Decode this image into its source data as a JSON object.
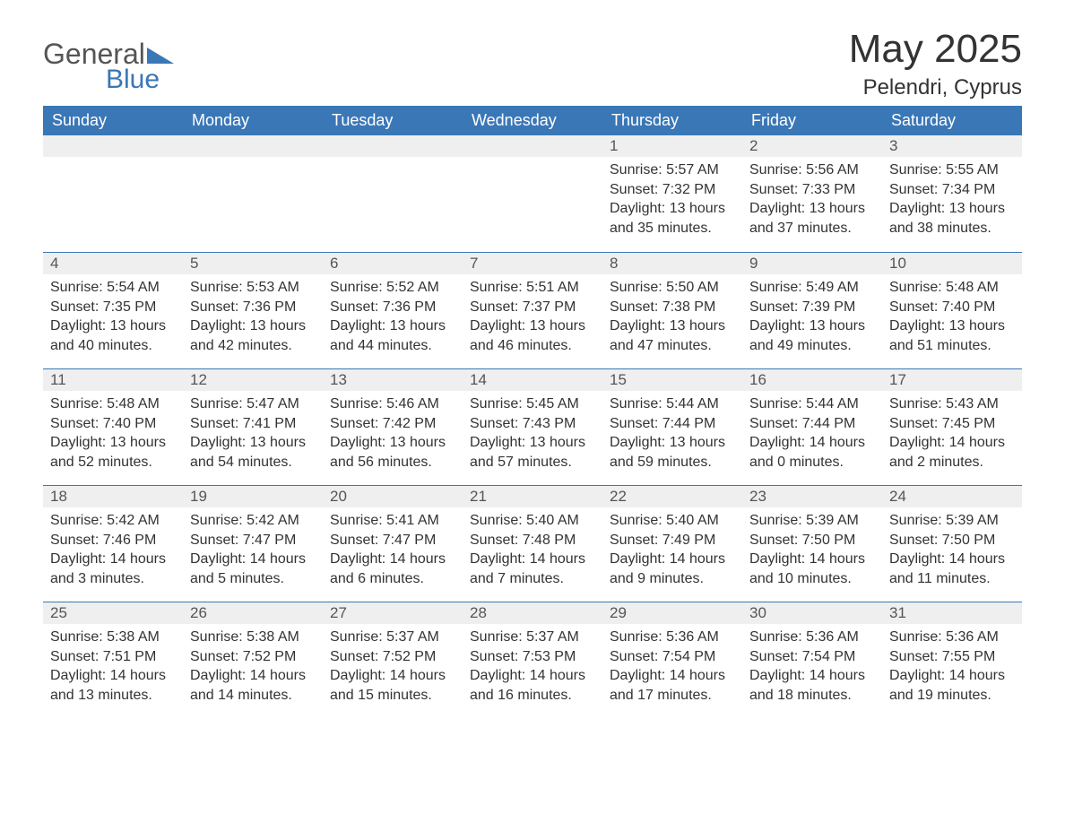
{
  "brand": {
    "text_general": "General",
    "text_blue": "Blue",
    "brand_color": "#3a77b7"
  },
  "title": "May 2025",
  "location": "Pelendri, Cyprus",
  "style": {
    "header_bg": "#3a77b7",
    "header_text_color": "#ffffff",
    "daybar_bg": "#efefef",
    "body_text_color": "#333333",
    "page_bg": "#ffffff",
    "border_color": "#3a77b7",
    "title_fontsize": 44,
    "location_fontsize": 24,
    "header_fontsize": 18,
    "body_fontsize": 16,
    "daynum_fontsize": 17,
    "columns": 7
  },
  "columns": [
    "Sunday",
    "Monday",
    "Tuesday",
    "Wednesday",
    "Thursday",
    "Friday",
    "Saturday"
  ],
  "labels": {
    "sunrise_prefix": "Sunrise: ",
    "sunset_prefix": "Sunset: ",
    "daylight_prefix": "Daylight: "
  },
  "weeks": [
    [
      null,
      null,
      null,
      null,
      {
        "day": "1",
        "sunrise": "5:57 AM",
        "sunset": "7:32 PM",
        "daylight": "13 hours and 35 minutes."
      },
      {
        "day": "2",
        "sunrise": "5:56 AM",
        "sunset": "7:33 PM",
        "daylight": "13 hours and 37 minutes."
      },
      {
        "day": "3",
        "sunrise": "5:55 AM",
        "sunset": "7:34 PM",
        "daylight": "13 hours and 38 minutes."
      }
    ],
    [
      {
        "day": "4",
        "sunrise": "5:54 AM",
        "sunset": "7:35 PM",
        "daylight": "13 hours and 40 minutes."
      },
      {
        "day": "5",
        "sunrise": "5:53 AM",
        "sunset": "7:36 PM",
        "daylight": "13 hours and 42 minutes."
      },
      {
        "day": "6",
        "sunrise": "5:52 AM",
        "sunset": "7:36 PM",
        "daylight": "13 hours and 44 minutes."
      },
      {
        "day": "7",
        "sunrise": "5:51 AM",
        "sunset": "7:37 PM",
        "daylight": "13 hours and 46 minutes."
      },
      {
        "day": "8",
        "sunrise": "5:50 AM",
        "sunset": "7:38 PM",
        "daylight": "13 hours and 47 minutes."
      },
      {
        "day": "9",
        "sunrise": "5:49 AM",
        "sunset": "7:39 PM",
        "daylight": "13 hours and 49 minutes."
      },
      {
        "day": "10",
        "sunrise": "5:48 AM",
        "sunset": "7:40 PM",
        "daylight": "13 hours and 51 minutes."
      }
    ],
    [
      {
        "day": "11",
        "sunrise": "5:48 AM",
        "sunset": "7:40 PM",
        "daylight": "13 hours and 52 minutes."
      },
      {
        "day": "12",
        "sunrise": "5:47 AM",
        "sunset": "7:41 PM",
        "daylight": "13 hours and 54 minutes."
      },
      {
        "day": "13",
        "sunrise": "5:46 AM",
        "sunset": "7:42 PM",
        "daylight": "13 hours and 56 minutes."
      },
      {
        "day": "14",
        "sunrise": "5:45 AM",
        "sunset": "7:43 PM",
        "daylight": "13 hours and 57 minutes."
      },
      {
        "day": "15",
        "sunrise": "5:44 AM",
        "sunset": "7:44 PM",
        "daylight": "13 hours and 59 minutes."
      },
      {
        "day": "16",
        "sunrise": "5:44 AM",
        "sunset": "7:44 PM",
        "daylight": "14 hours and 0 minutes."
      },
      {
        "day": "17",
        "sunrise": "5:43 AM",
        "sunset": "7:45 PM",
        "daylight": "14 hours and 2 minutes."
      }
    ],
    [
      {
        "day": "18",
        "sunrise": "5:42 AM",
        "sunset": "7:46 PM",
        "daylight": "14 hours and 3 minutes."
      },
      {
        "day": "19",
        "sunrise": "5:42 AM",
        "sunset": "7:47 PM",
        "daylight": "14 hours and 5 minutes."
      },
      {
        "day": "20",
        "sunrise": "5:41 AM",
        "sunset": "7:47 PM",
        "daylight": "14 hours and 6 minutes."
      },
      {
        "day": "21",
        "sunrise": "5:40 AM",
        "sunset": "7:48 PM",
        "daylight": "14 hours and 7 minutes."
      },
      {
        "day": "22",
        "sunrise": "5:40 AM",
        "sunset": "7:49 PM",
        "daylight": "14 hours and 9 minutes."
      },
      {
        "day": "23",
        "sunrise": "5:39 AM",
        "sunset": "7:50 PM",
        "daylight": "14 hours and 10 minutes."
      },
      {
        "day": "24",
        "sunrise": "5:39 AM",
        "sunset": "7:50 PM",
        "daylight": "14 hours and 11 minutes."
      }
    ],
    [
      {
        "day": "25",
        "sunrise": "5:38 AM",
        "sunset": "7:51 PM",
        "daylight": "14 hours and 13 minutes."
      },
      {
        "day": "26",
        "sunrise": "5:38 AM",
        "sunset": "7:52 PM",
        "daylight": "14 hours and 14 minutes."
      },
      {
        "day": "27",
        "sunrise": "5:37 AM",
        "sunset": "7:52 PM",
        "daylight": "14 hours and 15 minutes."
      },
      {
        "day": "28",
        "sunrise": "5:37 AM",
        "sunset": "7:53 PM",
        "daylight": "14 hours and 16 minutes."
      },
      {
        "day": "29",
        "sunrise": "5:36 AM",
        "sunset": "7:54 PM",
        "daylight": "14 hours and 17 minutes."
      },
      {
        "day": "30",
        "sunrise": "5:36 AM",
        "sunset": "7:54 PM",
        "daylight": "14 hours and 18 minutes."
      },
      {
        "day": "31",
        "sunrise": "5:36 AM",
        "sunset": "7:55 PM",
        "daylight": "14 hours and 19 minutes."
      }
    ]
  ]
}
